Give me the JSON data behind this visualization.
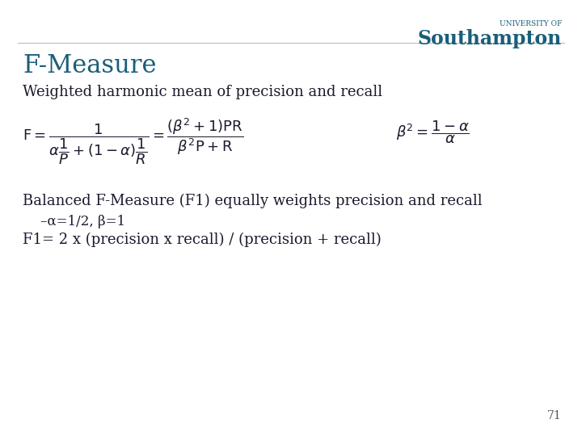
{
  "title": "F-Measure",
  "title_color": "#1a5e7a",
  "title_fontsize": 22,
  "bg_color": "#ffffff",
  "text_color": "#1a1a2e",
  "body_fontsize": 13,
  "formula_fontsize": 13,
  "slide_number": "71",
  "university_of": "UNIVERSITY OF",
  "southampton": "Southampton",
  "logo_color": "#1a5e7a",
  "subtitle1": "Weighted harmonic mean of precision and recall",
  "subtitle2": "Balanced F-Measure (F1) equally weights precision and recall",
  "bullet1": "–α=1/2, β=1",
  "line3": "F1= 2 x (precision x recall) / (precision + recall)"
}
